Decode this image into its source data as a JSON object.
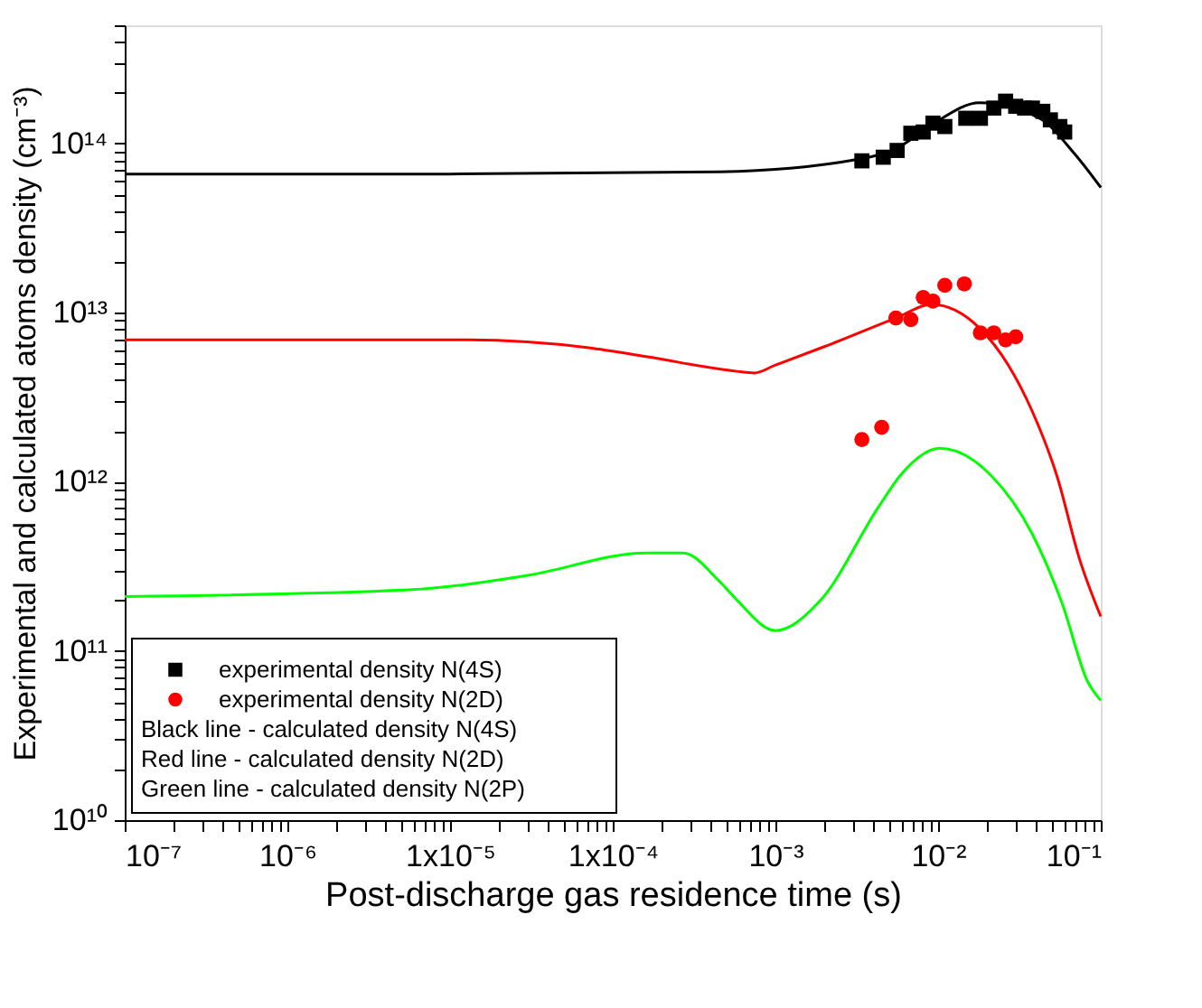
{
  "chart_data": {
    "type": "line",
    "xlabel": "Post-discharge gas residence time (s)",
    "ylabel": "Experimental and calculated atoms density (cm⁻³)",
    "log": "xy",
    "grid": false,
    "legend": "bottom left",
    "xlim": [
      1e-07,
      0.1
    ],
    "ylim": [
      10000000000.0,
      500000000000000.0
    ],
    "xticks": [
      {
        "value": 1e-07,
        "label": "10⁻⁷"
      },
      {
        "value": 2e-07,
        "label": null
      },
      {
        "value": 3e-07,
        "label": null
      },
      {
        "value": 4e-07,
        "label": null
      },
      {
        "value": 5e-07,
        "label": null
      },
      {
        "value": 6e-07,
        "label": null
      },
      {
        "value": 7e-07,
        "label": null
      },
      {
        "value": 8e-07,
        "label": null
      },
      {
        "value": 9e-07,
        "label": null
      },
      {
        "value": 1e-06,
        "label": "10⁻⁶"
      },
      {
        "value": 2e-06,
        "label": null
      },
      {
        "value": 3e-06,
        "label": null
      },
      {
        "value": 4e-06,
        "label": null
      },
      {
        "value": 5e-06,
        "label": null
      },
      {
        "value": 6e-06,
        "label": null
      },
      {
        "value": 7e-06,
        "label": null
      },
      {
        "value": 8e-06,
        "label": null
      },
      {
        "value": 9e-06,
        "label": null
      },
      {
        "value": 1e-05,
        "label": "1x10⁻⁵"
      },
      {
        "value": 2e-05,
        "label": null
      },
      {
        "value": 3e-05,
        "label": null
      },
      {
        "value": 4e-05,
        "label": null
      },
      {
        "value": 5e-05,
        "label": null
      },
      {
        "value": 6e-05,
        "label": null
      },
      {
        "value": 7e-05,
        "label": null
      },
      {
        "value": 8e-05,
        "label": null
      },
      {
        "value": 9e-05,
        "label": null
      },
      {
        "value": 0.0001,
        "label": "1x10⁻⁴"
      },
      {
        "value": 0.0002,
        "label": null
      },
      {
        "value": 0.0003,
        "label": null
      },
      {
        "value": 0.0004,
        "label": null
      },
      {
        "value": 0.0005,
        "label": null
      },
      {
        "value": 0.0006,
        "label": null
      },
      {
        "value": 0.0007,
        "label": null
      },
      {
        "value": 0.0008,
        "label": null
      },
      {
        "value": 0.0009,
        "label": null
      },
      {
        "value": 0.001,
        "label": "10⁻³"
      },
      {
        "value": 0.002,
        "label": null
      },
      {
        "value": 0.003,
        "label": null
      },
      {
        "value": 0.004,
        "label": null
      },
      {
        "value": 0.005,
        "label": null
      },
      {
        "value": 0.006,
        "label": null
      },
      {
        "value": 0.007,
        "label": null
      },
      {
        "value": 0.008,
        "label": null
      },
      {
        "value": 0.009,
        "label": null
      },
      {
        "value": 0.01,
        "label": "10⁻²"
      },
      {
        "value": 0.02,
        "label": null
      },
      {
        "value": 0.03,
        "label": null
      },
      {
        "value": 0.04,
        "label": null
      },
      {
        "value": 0.05,
        "label": null
      },
      {
        "value": 0.06,
        "label": null
      },
      {
        "value": 0.07,
        "label": null
      },
      {
        "value": 0.08,
        "label": null
      },
      {
        "value": 0.09,
        "label": null
      },
      {
        "value": 0.1,
        "label": "10⁻¹"
      }
    ],
    "yticks": [
      {
        "value": 10000000000.0,
        "label": "10¹⁰"
      },
      {
        "value": 20000000000.0,
        "label": null
      },
      {
        "value": 30000000000.0,
        "label": null
      },
      {
        "value": 40000000000.0,
        "label": null
      },
      {
        "value": 50000000000.0,
        "label": null
      },
      {
        "value": 60000000000.0,
        "label": null
      },
      {
        "value": 70000000000.0,
        "label": null
      },
      {
        "value": 80000000000.0,
        "label": null
      },
      {
        "value": 90000000000.0,
        "label": null
      },
      {
        "value": 100000000000.0,
        "label": "10¹¹"
      },
      {
        "value": 200000000000.0,
        "label": null
      },
      {
        "value": 300000000000.0,
        "label": null
      },
      {
        "value": 400000000000.0,
        "label": null
      },
      {
        "value": 500000000000.0,
        "label": null
      },
      {
        "value": 600000000000.0,
        "label": null
      },
      {
        "value": 700000000000.0,
        "label": null
      },
      {
        "value": 800000000000.0,
        "label": null
      },
      {
        "value": 900000000000.0,
        "label": null
      },
      {
        "value": 1000000000000.0,
        "label": "10¹²"
      },
      {
        "value": 2000000000000.0,
        "label": null
      },
      {
        "value": 3000000000000.0,
        "label": null
      },
      {
        "value": 4000000000000.0,
        "label": null
      },
      {
        "value": 5000000000000.0,
        "label": null
      },
      {
        "value": 6000000000000.0,
        "label": null
      },
      {
        "value": 7000000000000.0,
        "label": null
      },
      {
        "value": 8000000000000.0,
        "label": null
      },
      {
        "value": 9000000000000.0,
        "label": null
      },
      {
        "value": 10000000000000.0,
        "label": "10¹³"
      },
      {
        "value": 20000000000000.0,
        "label": null
      },
      {
        "value": 30000000000000.0,
        "label": null
      },
      {
        "value": 40000000000000.0,
        "label": null
      },
      {
        "value": 50000000000000.0,
        "label": null
      },
      {
        "value": 60000000000000.0,
        "label": null
      },
      {
        "value": 70000000000000.0,
        "label": null
      },
      {
        "value": 80000000000000.0,
        "label": null
      },
      {
        "value": 90000000000000.0,
        "label": null
      },
      {
        "value": 100000000000000.0,
        "label": "10¹⁴"
      },
      {
        "value": 200000000000000.0,
        "label": null
      },
      {
        "value": 300000000000000.0,
        "label": null
      },
      {
        "value": 400000000000000.0,
        "label": null
      },
      {
        "value": 500000000000000.0,
        "label": null
      }
    ],
    "series": [
      {
        "color": "#000000",
        "x": [
          1e-07,
          1e-05,
          0.00045,
          0.0033,
          0.0055,
          0.0091,
          0.018,
          0.042,
          0.069,
          0.1
        ],
        "values": [
          66000000000000.0,
          66000000000000.0,
          68000000000000.0,
          81000000000000.0,
          93000000000000.0,
          129000000000000.0,
          174000000000000.0,
          141000000000000.0,
          87000000000000.0,
          55000000000000.0
        ]
      },
      {
        "color": "#ff0000",
        "x": [
          1e-07,
          1.3e-05,
          7.1e-05,
          0.00016,
          0.00058,
          0.00074,
          0.001,
          0.002,
          0.0055,
          0.0091,
          0.018,
          0.027,
          0.038,
          0.054,
          0.074,
          0.1
        ],
        "values": [
          6900000000000.0,
          6900000000000.0,
          6200000000000.0,
          5500000000000.0,
          4500000000000.0,
          4400000000000.0,
          4900000000000.0,
          6300000000000.0,
          9300000000000.0,
          11200000000000.0,
          8100000000000.0,
          4900000000000.0,
          2600000000000.0,
          1070000000000.0,
          350000000000.0,
          160000000000.0
        ]
      },
      {
        "color": "#00ff00",
        "x": [
          1e-07,
          5.6e-06,
          3e-05,
          0.00016,
          0.00027,
          0.00045,
          0.00058,
          0.001,
          0.0019,
          0.0043,
          0.0059,
          0.0102,
          0.021,
          0.038,
          0.058,
          0.083,
          0.1
        ],
        "values": [
          210000000000.0,
          230000000000.0,
          280000000000.0,
          380000000000.0,
          380000000000.0,
          260000000000.0,
          200000000000.0,
          132000000000.0,
          200000000000.0,
          710000000000.0,
          1100000000000.0,
          1580000000000.0,
          1100000000000.0,
          490000000000.0,
          190000000000.0,
          66000000000.0,
          51000000000.0
        ]
      },
      {
        "type": "scatter",
        "marker": "square",
        "name": "experimental density N(4S)",
        "color": "#000000",
        "x": [
          0.0034,
          0.0046,
          0.0056,
          0.0068,
          0.0081,
          0.0093,
          0.011,
          0.0148,
          0.0182,
          0.022,
          0.026,
          0.03,
          0.034,
          0.038,
          0.044,
          0.049,
          0.056,
          0.06
        ],
        "values": [
          79000000000000.0,
          83000000000000.0,
          91000000000000.0,
          115000000000000.0,
          117000000000000.0,
          132000000000000.0,
          126000000000000.0,
          141000000000000.0,
          141000000000000.0,
          162000000000000.0,
          178000000000000.0,
          166000000000000.0,
          162000000000000.0,
          162000000000000.0,
          155000000000000.0,
          138000000000000.0,
          126000000000000.0,
          117000000000000.0
        ]
      },
      {
        "type": "scatter",
        "marker": "circle",
        "name": "experimental density N(2D)",
        "color": "#ff0000",
        "x": [
          0.0034,
          0.0045,
          0.0055,
          0.0068,
          0.0081,
          0.0093,
          0.011,
          0.0145,
          0.0182,
          0.022,
          0.026,
          0.03
        ],
        "values": [
          1780000000000.0,
          2100000000000.0,
          9300000000000.0,
          9100000000000.0,
          12300000000000.0,
          11700000000000.0,
          14500000000000.0,
          14800000000000.0,
          7600000000000.0,
          7600000000000.0,
          6900000000000.0,
          7200000000000.0
        ]
      }
    ],
    "annotations": [
      "Black line - calculated density N(4S)",
      "Red line - calculated density N(2D)",
      "Green line - calculated density N(2P)"
    ]
  }
}
